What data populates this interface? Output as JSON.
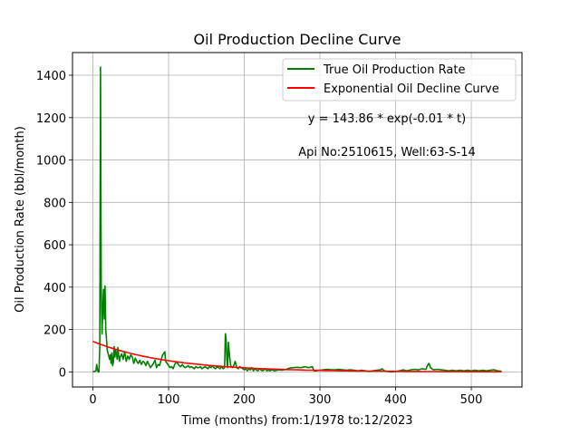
{
  "chart_data": {
    "type": "line",
    "title": "Oil Production Decline Curve",
    "xlabel": "Time (months) from:1/1978 to:12/2023",
    "ylabel": "Oil Production Rate (bbl/month)",
    "xlim": [
      -27,
      567
    ],
    "ylim": [
      -71,
      1507
    ],
    "xticks": [
      0,
      100,
      200,
      300,
      400,
      500
    ],
    "yticks": [
      0,
      200,
      400,
      600,
      800,
      1000,
      1200,
      1400
    ],
    "grid": true,
    "legend_position": "top-right",
    "annotations": [
      "y = 143.86 * exp(-0.01 * t)",
      "Api No:2510615, Well:63-S-14"
    ],
    "series": [
      {
        "name": "True Oil Production Rate",
        "color": "#008000",
        "kind": "line",
        "points": [
          [
            0,
            0
          ],
          [
            2,
            2
          ],
          [
            4,
            5
          ],
          [
            5,
            35
          ],
          [
            6,
            10
          ],
          [
            7,
            0
          ],
          [
            8,
            0
          ],
          [
            9,
            120
          ],
          [
            10,
            1438
          ],
          [
            11,
            400
          ],
          [
            12,
            180
          ],
          [
            13,
            300
          ],
          [
            14,
            390
          ],
          [
            15,
            250
          ],
          [
            16,
            405
          ],
          [
            17,
            200
          ],
          [
            18,
            150
          ],
          [
            19,
            100
          ],
          [
            20,
            90
          ],
          [
            22,
            60
          ],
          [
            23,
            80
          ],
          [
            24,
            40
          ],
          [
            25,
            90
          ],
          [
            26,
            30
          ],
          [
            27,
            45
          ],
          [
            28,
            120
          ],
          [
            29,
            70
          ],
          [
            30,
            100
          ],
          [
            31,
            90
          ],
          [
            32,
            60
          ],
          [
            33,
            115
          ],
          [
            34,
            80
          ],
          [
            35,
            50
          ],
          [
            36,
            70
          ],
          [
            38,
            85
          ],
          [
            40,
            60
          ],
          [
            42,
            95
          ],
          [
            44,
            50
          ],
          [
            46,
            75
          ],
          [
            48,
            60
          ],
          [
            50,
            80
          ],
          [
            52,
            70
          ],
          [
            54,
            40
          ],
          [
            56,
            65
          ],
          [
            58,
            50
          ],
          [
            60,
            40
          ],
          [
            62,
            55
          ],
          [
            64,
            35
          ],
          [
            66,
            50
          ],
          [
            68,
            45
          ],
          [
            70,
            30
          ],
          [
            72,
            50
          ],
          [
            74,
            35
          ],
          [
            76,
            20
          ],
          [
            78,
            30
          ],
          [
            80,
            40
          ],
          [
            82,
            55
          ],
          [
            84,
            20
          ],
          [
            86,
            35
          ],
          [
            88,
            30
          ],
          [
            90,
            55
          ],
          [
            92,
            80
          ],
          [
            94,
            90
          ],
          [
            95,
            95
          ],
          [
            96,
            50
          ],
          [
            98,
            40
          ],
          [
            100,
            30
          ],
          [
            102,
            20
          ],
          [
            104,
            25
          ],
          [
            106,
            15
          ],
          [
            108,
            35
          ],
          [
            110,
            45
          ],
          [
            112,
            40
          ],
          [
            114,
            30
          ],
          [
            116,
            25
          ],
          [
            118,
            35
          ],
          [
            120,
            25
          ],
          [
            122,
            20
          ],
          [
            124,
            25
          ],
          [
            126,
            30
          ],
          [
            128,
            20
          ],
          [
            130,
            25
          ],
          [
            132,
            20
          ],
          [
            134,
            15
          ],
          [
            136,
            25
          ],
          [
            138,
            20
          ],
          [
            140,
            20
          ],
          [
            142,
            25
          ],
          [
            144,
            15
          ],
          [
            146,
            20
          ],
          [
            148,
            25
          ],
          [
            150,
            20
          ],
          [
            152,
            15
          ],
          [
            154,
            25
          ],
          [
            156,
            20
          ],
          [
            158,
            30
          ],
          [
            160,
            20
          ],
          [
            162,
            15
          ],
          [
            164,
            25
          ],
          [
            166,
            20
          ],
          [
            168,
            15
          ],
          [
            170,
            25
          ],
          [
            172,
            15
          ],
          [
            174,
            20
          ],
          [
            175,
            180
          ],
          [
            176,
            150
          ],
          [
            177,
            60
          ],
          [
            178,
            20
          ],
          [
            179,
            140
          ],
          [
            180,
            100
          ],
          [
            181,
            60
          ],
          [
            182,
            30
          ],
          [
            184,
            20
          ],
          [
            186,
            30
          ],
          [
            188,
            50
          ],
          [
            190,
            20
          ],
          [
            192,
            15
          ],
          [
            194,
            25
          ],
          [
            196,
            20
          ],
          [
            198,
            15
          ],
          [
            200,
            10
          ],
          [
            202,
            15
          ],
          [
            204,
            5
          ],
          [
            206,
            15
          ],
          [
            208,
            10
          ],
          [
            210,
            20
          ],
          [
            212,
            5
          ],
          [
            214,
            15
          ],
          [
            216,
            10
          ],
          [
            218,
            5
          ],
          [
            220,
            15
          ],
          [
            222,
            10
          ],
          [
            224,
            5
          ],
          [
            226,
            10
          ],
          [
            228,
            15
          ],
          [
            230,
            5
          ],
          [
            232,
            10
          ],
          [
            234,
            5
          ],
          [
            236,
            10
          ],
          [
            238,
            8
          ],
          [
            240,
            5
          ],
          [
            245,
            10
          ],
          [
            250,
            8
          ],
          [
            255,
            12
          ],
          [
            260,
            18
          ],
          [
            265,
            20
          ],
          [
            270,
            22
          ],
          [
            275,
            20
          ],
          [
            280,
            25
          ],
          [
            285,
            20
          ],
          [
            290,
            25
          ],
          [
            292,
            5
          ],
          [
            295,
            5
          ],
          [
            300,
            8
          ],
          [
            305,
            10
          ],
          [
            310,
            12
          ],
          [
            315,
            10
          ],
          [
            320,
            10
          ],
          [
            325,
            12
          ],
          [
            330,
            10
          ],
          [
            335,
            8
          ],
          [
            340,
            10
          ],
          [
            345,
            8
          ],
          [
            350,
            5
          ],
          [
            355,
            8
          ],
          [
            360,
            5
          ],
          [
            365,
            2
          ],
          [
            370,
            5
          ],
          [
            375,
            8
          ],
          [
            380,
            10
          ],
          [
            382,
            15
          ],
          [
            385,
            5
          ],
          [
            390,
            2
          ],
          [
            395,
            0
          ],
          [
            400,
            2
          ],
          [
            405,
            5
          ],
          [
            410,
            10
          ],
          [
            415,
            5
          ],
          [
            420,
            10
          ],
          [
            425,
            12
          ],
          [
            430,
            10
          ],
          [
            435,
            15
          ],
          [
            440,
            12
          ],
          [
            442,
            30
          ],
          [
            444,
            40
          ],
          [
            446,
            20
          ],
          [
            448,
            15
          ],
          [
            450,
            10
          ],
          [
            455,
            12
          ],
          [
            460,
            10
          ],
          [
            465,
            8
          ],
          [
            470,
            5
          ],
          [
            475,
            8
          ],
          [
            480,
            5
          ],
          [
            485,
            8
          ],
          [
            490,
            5
          ],
          [
            495,
            8
          ],
          [
            500,
            5
          ],
          [
            505,
            8
          ],
          [
            510,
            5
          ],
          [
            515,
            8
          ],
          [
            520,
            5
          ],
          [
            525,
            8
          ],
          [
            530,
            10
          ],
          [
            535,
            5
          ],
          [
            540,
            3
          ]
        ]
      },
      {
        "name": "Exponential Oil Decline Curve",
        "color": "#ff0000",
        "kind": "function",
        "a": 143.86,
        "b": -0.01,
        "t_range": [
          0,
          540
        ]
      }
    ]
  }
}
